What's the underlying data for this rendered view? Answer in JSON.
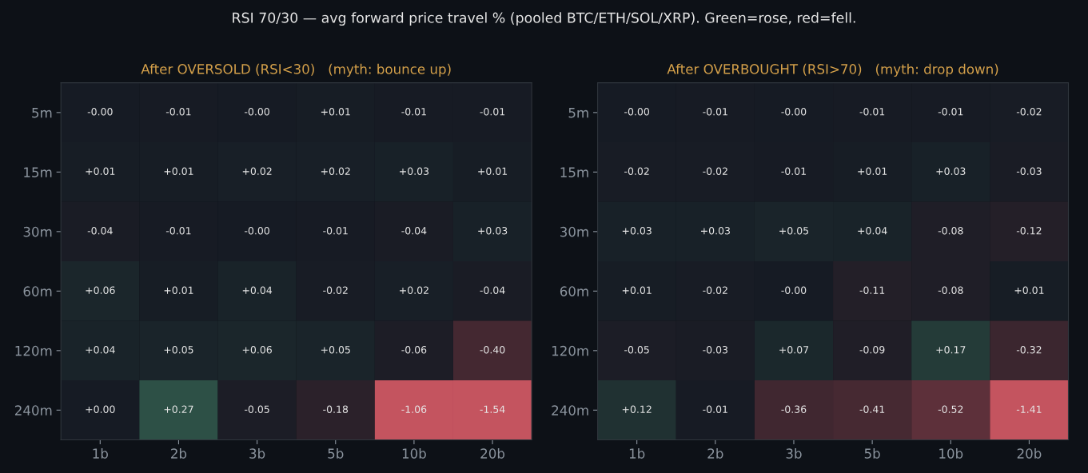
{
  "chart_data": [
    {
      "type": "heatmap",
      "title": "After OVERSOLD (RSI<30)   (myth: bounce up)",
      "annotations": [
        "RSI 70/30 — avg forward price travel % (pooled BTC/ETH/SOL/XRP). Green=rose, red=fell."
      ],
      "categories": [
        "1b",
        "2b",
        "3b",
        "5b",
        "10b",
        "20b"
      ],
      "y_categories": [
        "5m",
        "15m",
        "30m",
        "60m",
        "120m",
        "240m"
      ],
      "cells": [
        [
          -0.0,
          -0.01,
          -0.0,
          0.01,
          -0.01,
          -0.01
        ],
        [
          0.01,
          0.01,
          0.02,
          0.02,
          0.03,
          0.01
        ],
        [
          -0.04,
          -0.01,
          -0.0,
          -0.01,
          -0.04,
          0.03
        ],
        [
          0.06,
          0.01,
          0.04,
          -0.02,
          0.02,
          -0.04
        ],
        [
          0.04,
          0.05,
          0.06,
          0.05,
          -0.06,
          -0.4
        ],
        [
          0.0,
          0.27,
          -0.05,
          -0.18,
          -1.06,
          -1.54
        ]
      ],
      "cell_labels": [
        [
          "-0.00",
          "-0.01",
          "-0.00",
          "+0.01",
          "-0.01",
          "-0.01"
        ],
        [
          "+0.01",
          "+0.01",
          "+0.02",
          "+0.02",
          "+0.03",
          "+0.01"
        ],
        [
          "-0.04",
          "-0.01",
          "-0.00",
          "-0.01",
          "-0.04",
          "+0.03"
        ],
        [
          "+0.06",
          "+0.01",
          "+0.04",
          "-0.02",
          "+0.02",
          "-0.04"
        ],
        [
          "+0.04",
          "+0.05",
          "+0.06",
          "+0.05",
          "-0.06",
          "-0.40"
        ],
        [
          "+0.00",
          "+0.27",
          "-0.05",
          "-0.18",
          "-1.06",
          "-1.54"
        ]
      ]
    },
    {
      "type": "heatmap",
      "title": "After OVERBOUGHT (RSI>70)   (myth: drop down)",
      "categories": [
        "1b",
        "2b",
        "3b",
        "5b",
        "10b",
        "20b"
      ],
      "y_categories": [
        "5m",
        "15m",
        "30m",
        "60m",
        "120m",
        "240m"
      ],
      "cells": [
        [
          -0.0,
          -0.01,
          -0.0,
          -0.01,
          -0.01,
          -0.02
        ],
        [
          -0.02,
          -0.02,
          -0.01,
          0.01,
          0.03,
          -0.03
        ],
        [
          0.03,
          0.03,
          0.05,
          0.04,
          -0.08,
          -0.12
        ],
        [
          0.01,
          -0.02,
          -0.0,
          -0.11,
          -0.08,
          0.01
        ],
        [
          -0.05,
          -0.03,
          0.07,
          -0.09,
          0.17,
          -0.32
        ],
        [
          0.12,
          -0.01,
          -0.36,
          -0.41,
          -0.52,
          -1.41
        ]
      ],
      "cell_labels": [
        [
          "-0.00",
          "-0.01",
          "-0.00",
          "-0.01",
          "-0.01",
          "-0.02"
        ],
        [
          "-0.02",
          "-0.02",
          "-0.01",
          "+0.01",
          "+0.03",
          "-0.03"
        ],
        [
          "+0.03",
          "+0.03",
          "+0.05",
          "+0.04",
          "-0.08",
          "-0.12"
        ],
        [
          "+0.01",
          "-0.02",
          "-0.00",
          "-0.11",
          "-0.08",
          "+0.01"
        ],
        [
          "-0.05",
          "-0.03",
          "+0.07",
          "-0.09",
          "+0.17",
          "-0.32"
        ],
        [
          "+0.12",
          "-0.01",
          "-0.36",
          "-0.41",
          "-0.52",
          "-1.41"
        ]
      ]
    }
  ]
}
